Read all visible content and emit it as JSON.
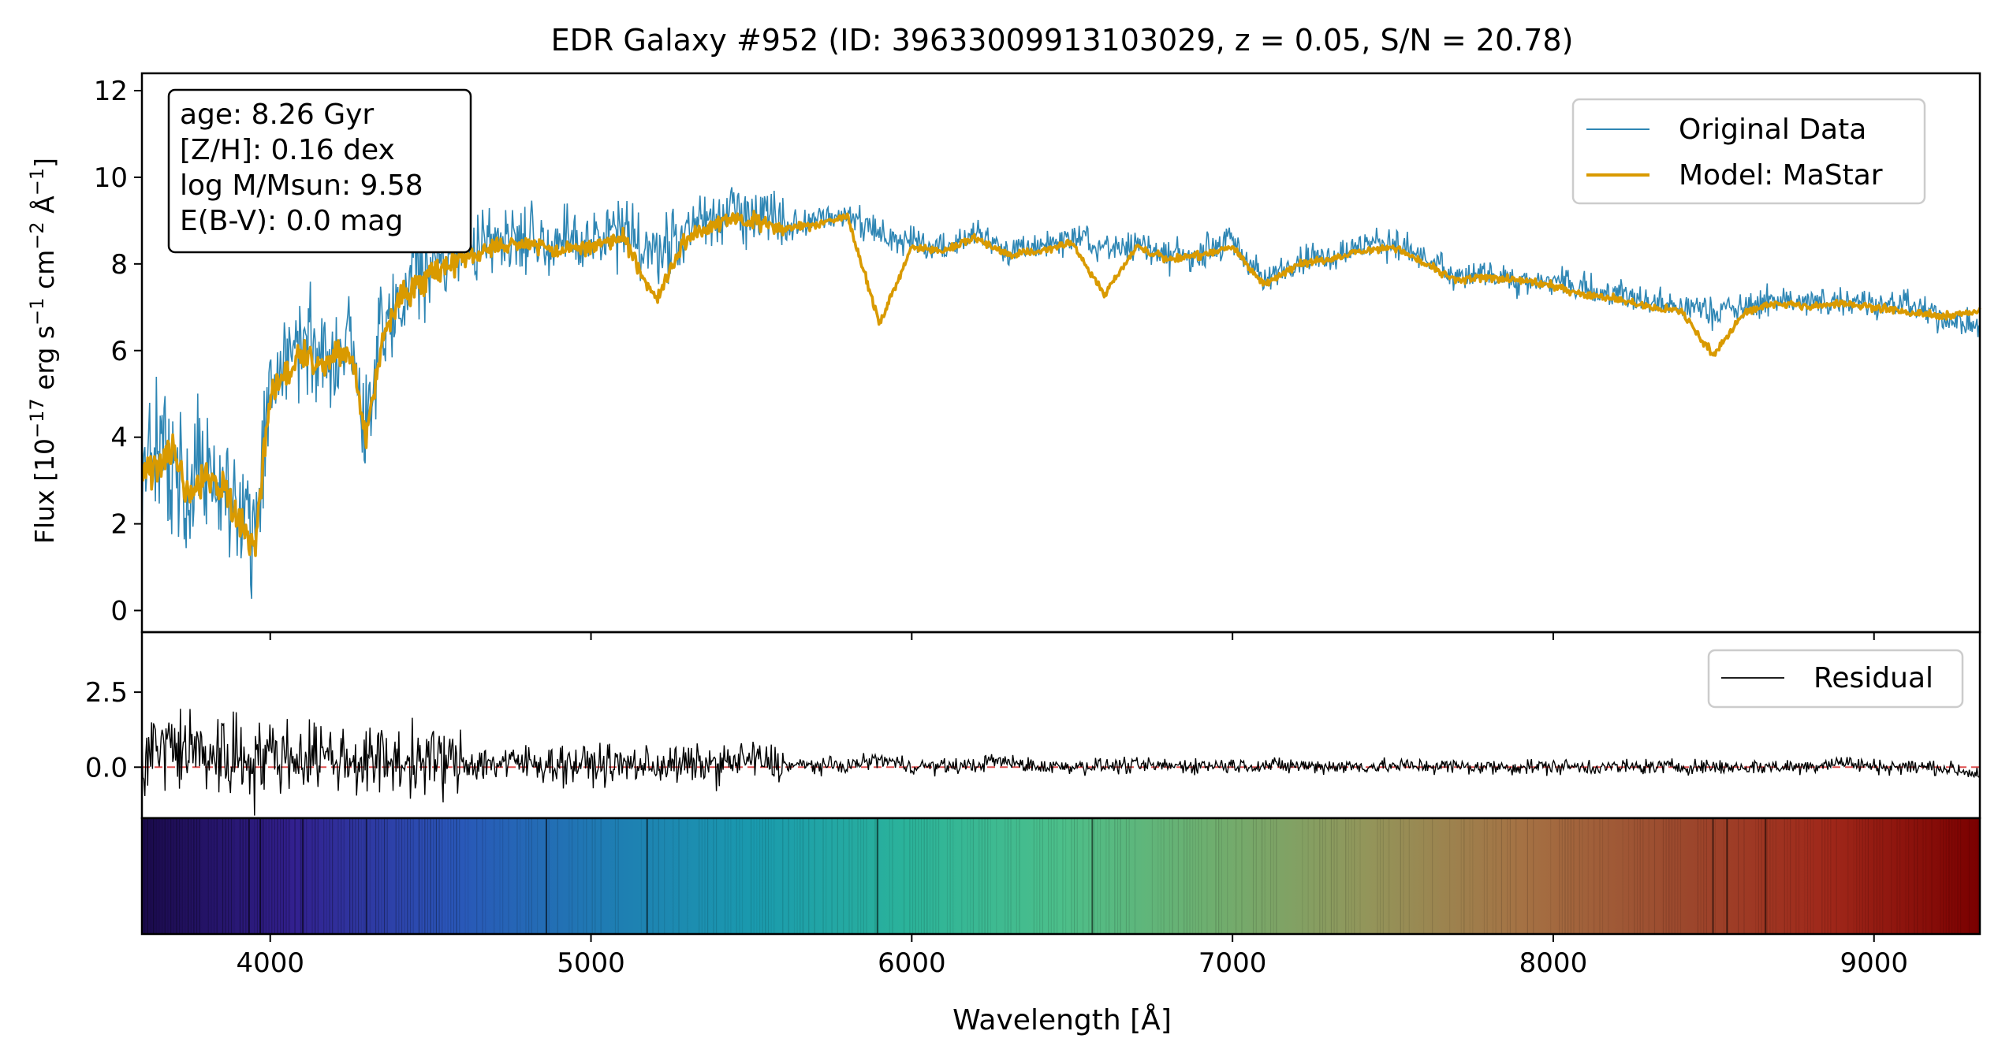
{
  "figure": {
    "title": "EDR Galaxy #952 (ID: 39633009913103029, z = 0.05, S/N = 20.78)",
    "xlabel": "Wavelength [Å]",
    "ylabel_main": "Flux [10",
    "ylabel_exp1": "−17",
    "ylabel_mid": " erg s",
    "ylabel_exp2": "−1",
    "ylabel_mid2": " cm",
    "ylabel_exp3": "−2",
    "ylabel_mid3": " Å",
    "ylabel_exp4": "−1",
    "ylabel_end": "]"
  },
  "info_box": {
    "age": "age: 8.26 Gyr",
    "metallicity": "[Z/H]: 0.16 dex",
    "mass": "log M/Msun: 9.58",
    "extinction": "E(B-V): 0.0 mag"
  },
  "legend_main": {
    "original": "Original Data",
    "model": "Model: MaStar"
  },
  "legend_resid": {
    "residual": "Residual"
  },
  "colors": {
    "original": "#2e86b4",
    "model": "#d99a00",
    "residual": "#000000",
    "zero_line": "#e05050"
  },
  "chart_data": [
    {
      "type": "line",
      "panel": "spectrum",
      "title": "EDR Galaxy #952 (ID: 39633009913103029, z = 0.05, S/N = 20.78)",
      "xlim": [
        3600,
        9330
      ],
      "ylim": [
        -0.5,
        12.4
      ],
      "yticks": [
        "0",
        "2",
        "4",
        "6",
        "8",
        "10",
        "12"
      ],
      "ytick_values": [
        0,
        2,
        4,
        6,
        8,
        10,
        12
      ],
      "legend_position": "top-right",
      "series": [
        {
          "name": "Original Data",
          "x": [
            3600,
            3650,
            3700,
            3750,
            3800,
            3850,
            3900,
            3950,
            4000,
            4050,
            4100,
            4150,
            4200,
            4250,
            4300,
            4350,
            4400,
            4450,
            4500,
            4600,
            4700,
            4800,
            4900,
            5000,
            5100,
            5200,
            5300,
            5400,
            5500,
            5600,
            5700,
            5800,
            5900,
            6000,
            6100,
            6200,
            6300,
            6400,
            6500,
            6600,
            6700,
            6800,
            6900,
            7000,
            7100,
            7200,
            7300,
            7400,
            7500,
            7600,
            7700,
            7800,
            7900,
            8000,
            8100,
            8200,
            8300,
            8400,
            8500,
            8600,
            8700,
            8800,
            8900,
            9000,
            9100,
            9200,
            9330
          ],
          "y": [
            3.2,
            3.5,
            3.8,
            2.8,
            3.4,
            3.0,
            2.4,
            2.0,
            5.2,
            5.8,
            6.3,
            6.0,
            5.9,
            6.1,
            4.2,
            6.5,
            7.3,
            7.7,
            8.0,
            8.3,
            8.6,
            8.7,
            8.4,
            8.5,
            8.7,
            8.2,
            8.8,
            9.2,
            9.1,
            8.9,
            9.0,
            9.2,
            8.7,
            8.5,
            8.4,
            8.7,
            8.3,
            8.4,
            8.6,
            8.3,
            8.5,
            8.1,
            8.3,
            8.5,
            7.6,
            8.1,
            8.2,
            8.4,
            8.5,
            8.1,
            7.7,
            7.8,
            7.6,
            7.6,
            7.4,
            7.3,
            7.1,
            7.0,
            6.9,
            7.0,
            7.2,
            7.1,
            7.2,
            7.1,
            7.0,
            6.8,
            6.5
          ]
        },
        {
          "name": "Model: MaStar",
          "x": [
            3600,
            3650,
            3700,
            3750,
            3800,
            3850,
            3900,
            3950,
            4000,
            4050,
            4100,
            4150,
            4200,
            4250,
            4300,
            4350,
            4400,
            4450,
            4500,
            4600,
            4700,
            4800,
            4900,
            5000,
            5100,
            5200,
            5300,
            5400,
            5500,
            5600,
            5700,
            5800,
            5900,
            6000,
            6100,
            6200,
            6300,
            6400,
            6500,
            6600,
            6700,
            6800,
            6900,
            7000,
            7100,
            7200,
            7300,
            7400,
            7500,
            7600,
            7700,
            7800,
            7900,
            8000,
            8100,
            8200,
            8300,
            8400,
            8500,
            8600,
            8700,
            8800,
            8900,
            9000,
            9100,
            9200,
            9330
          ],
          "y": [
            3.0,
            3.3,
            3.6,
            2.6,
            3.1,
            2.8,
            2.2,
            1.3,
            5.0,
            5.5,
            5.9,
            5.7,
            5.8,
            6.0,
            4.0,
            6.3,
            7.1,
            7.5,
            7.8,
            8.1,
            8.4,
            8.5,
            8.3,
            8.4,
            8.6,
            7.2,
            8.6,
            9.0,
            9.0,
            8.8,
            8.9,
            9.1,
            6.6,
            8.4,
            8.3,
            8.6,
            8.2,
            8.3,
            8.5,
            7.3,
            8.4,
            8.1,
            8.2,
            8.4,
            7.5,
            8.0,
            8.1,
            8.3,
            8.4,
            8.0,
            7.6,
            7.7,
            7.6,
            7.5,
            7.3,
            7.2,
            7.0,
            6.9,
            5.9,
            6.9,
            7.1,
            7.0,
            7.1,
            7.0,
            6.9,
            6.8,
            6.9
          ]
        }
      ]
    },
    {
      "type": "line",
      "panel": "residual",
      "xlim": [
        3600,
        9330
      ],
      "ylim": [
        -1.7,
        4.5
      ],
      "yticks": [
        "0.0",
        "2.5"
      ],
      "ytick_values": [
        0.0,
        2.5
      ],
      "legend_position": "top-right",
      "series": [
        {
          "name": "Residual",
          "x": [
            3600,
            3700,
            3800,
            3900,
            4000,
            4100,
            4150,
            4200,
            4300,
            4400,
            4500,
            4600,
            4800,
            5000,
            5200,
            5400,
            5500,
            5600,
            5800,
            5900,
            6000,
            6200,
            6250,
            6400,
            6600,
            6800,
            7000,
            7200,
            7400,
            7600,
            7800,
            8000,
            8200,
            8400,
            8600,
            8800,
            8880,
            9000,
            9200,
            9330
          ],
          "y": [
            1.2,
            1.5,
            1.0,
            0.8,
            0.9,
            0.7,
            1.1,
            0.6,
            0.5,
            0.4,
            0.5,
            0.3,
            0.3,
            0.2,
            0.15,
            0.2,
            0.6,
            0.15,
            0.1,
            0.6,
            0.05,
            0.1,
            0.5,
            0.05,
            0.1,
            0.1,
            0.15,
            0.1,
            0.05,
            0.1,
            0.0,
            0.05,
            0.0,
            0.05,
            0.0,
            0.05,
            0.4,
            0.05,
            0.0,
            -0.5
          ]
        },
        {
          "name": "",
          "x": [
            3600,
            9330
          ],
          "y": [
            0,
            0
          ]
        }
      ]
    },
    {
      "type": "heatmap",
      "panel": "color_strip",
      "xlim": [
        3600,
        9330
      ],
      "xticks": [
        "4000",
        "5000",
        "6000",
        "7000",
        "8000",
        "9000"
      ],
      "xtick_values": [
        4000,
        5000,
        6000,
        7000,
        8000,
        9000
      ],
      "absorption_lines": [
        3934,
        3969,
        4101,
        4300,
        4861,
        5175,
        5893,
        6563,
        8498,
        8542,
        8662
      ],
      "colormap_stops": [
        "#1a0a4a",
        "#32208f",
        "#2a55b8",
        "#1f7bb3",
        "#1a9aae",
        "#2bb39a",
        "#4cbf8a",
        "#6fae6e",
        "#93955a",
        "#a57244",
        "#9c4a2e",
        "#a0281a",
        "#7a0000"
      ]
    }
  ]
}
